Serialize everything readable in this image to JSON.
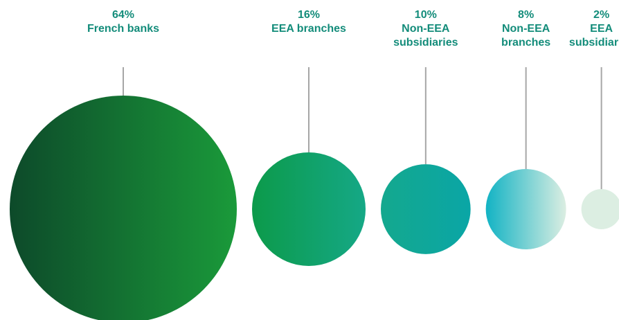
{
  "chart_data": {
    "type": "bubble",
    "title": "",
    "unit": "%",
    "categories": [
      "French banks",
      "EEA branches",
      "Non-EEA subsidiaries",
      "Non-EEA branches",
      "EEA subsidiaries"
    ],
    "values": [
      64,
      16,
      10,
      8,
      2
    ],
    "labels": [
      {
        "pct": "64%",
        "lines": [
          "French banks"
        ]
      },
      {
        "pct": "16%",
        "lines": [
          "EEA branches"
        ]
      },
      {
        "pct": "10%",
        "lines": [
          "Non-EEA",
          "subsidiaries"
        ]
      },
      {
        "pct": "8%",
        "lines": [
          "Non-EEA",
          "branches"
        ]
      },
      {
        "pct": "2%",
        "lines": [
          "EEA",
          "subsidiaries"
        ]
      }
    ],
    "colors": [
      [
        "#0d4a2a",
        "#1a9a3a"
      ],
      [
        "#0c9a4a",
        "#15a886"
      ],
      [
        "#14a88e",
        "#0aa6a6"
      ],
      [
        "#12b3c4",
        "#dceee2"
      ],
      [
        "#dceee2",
        "#dceee2"
      ]
    ],
    "connector_color": "#a6a6a6",
    "label_color": "#138c7a"
  }
}
